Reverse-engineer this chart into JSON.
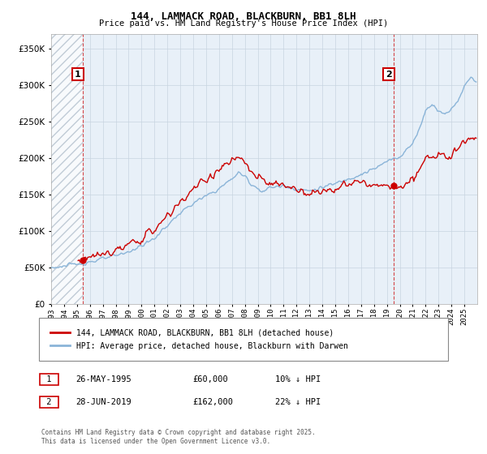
{
  "title1": "144, LAMMACK ROAD, BLACKBURN, BB1 8LH",
  "title2": "Price paid vs. HM Land Registry's House Price Index (HPI)",
  "legend_label1": "144, LAMMACK ROAD, BLACKBURN, BB1 8LH (detached house)",
  "legend_label2": "HPI: Average price, detached house, Blackburn with Darwen",
  "annotation1_date": "26-MAY-1995",
  "annotation1_price": "£60,000",
  "annotation1_hpi": "10% ↓ HPI",
  "annotation2_date": "28-JUN-2019",
  "annotation2_price": "£162,000",
  "annotation2_hpi": "22% ↓ HPI",
  "footnote": "Contains HM Land Registry data © Crown copyright and database right 2025.\nThis data is licensed under the Open Government Licence v3.0.",
  "sale1_year": 1995.42,
  "sale1_price": 60000,
  "sale2_year": 2019.5,
  "sale2_price": 162000,
  "hpi_color": "#8ab4d8",
  "price_color": "#cc0000",
  "annotation_box_color": "#cc0000",
  "chart_bg_color": "#e8f0f8",
  "hatch_color": "#c8d4e0",
  "background_color": "#ffffff",
  "ylim_min": 0,
  "ylim_max": 370000,
  "xlim_min": 1993,
  "xlim_max": 2026
}
